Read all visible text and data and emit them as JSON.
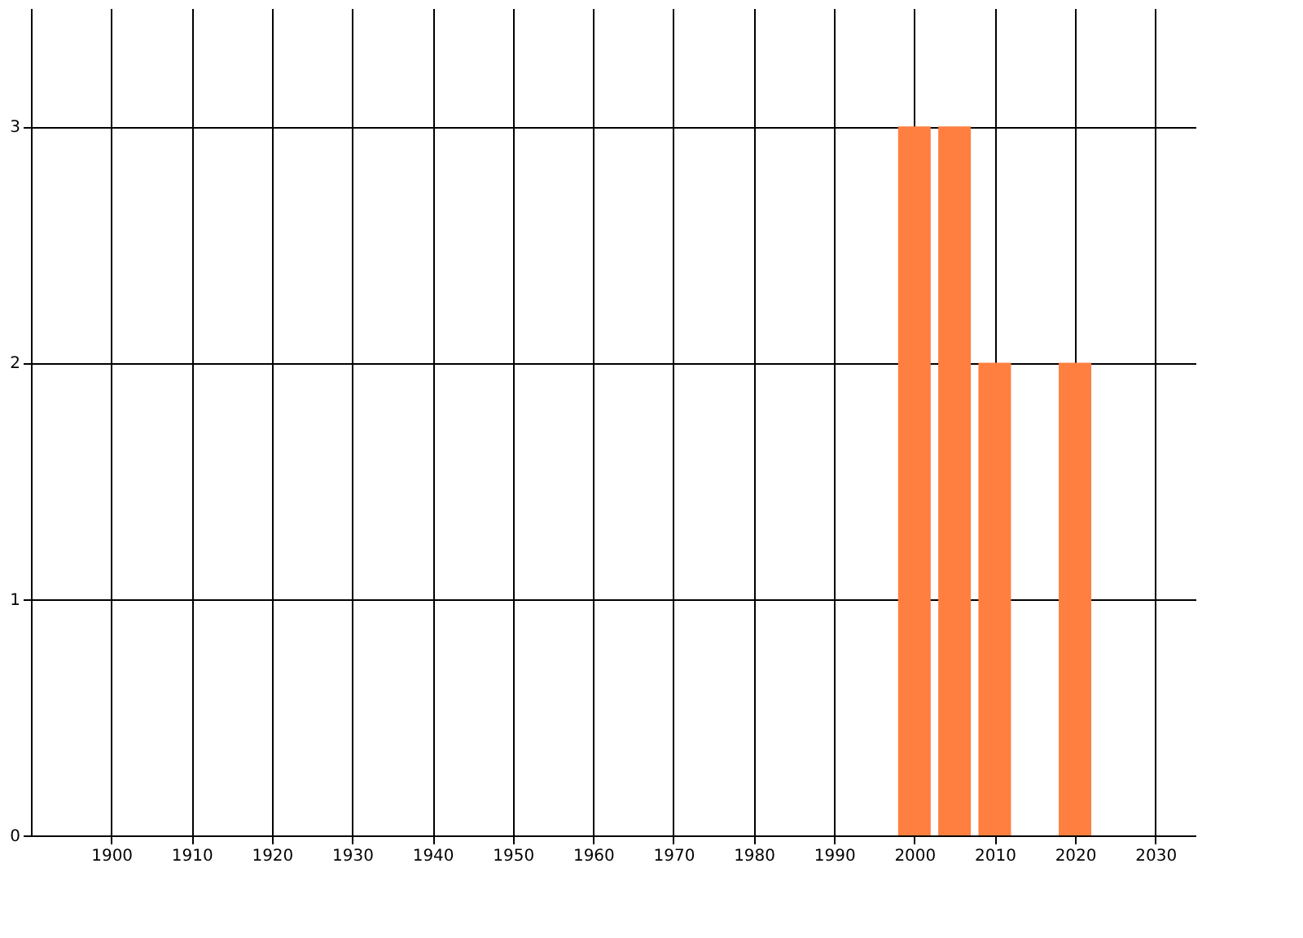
{
  "chart_data": {
    "type": "bar",
    "x": [
      2000,
      2005,
      2010,
      2020
    ],
    "values": [
      3,
      3,
      2,
      2
    ],
    "color": "#ff7f40",
    "xlim": [
      1890,
      2035
    ],
    "xticks": [
      1900,
      1910,
      1920,
      1930,
      1940,
      1950,
      1960,
      1970,
      1980,
      1990,
      2000,
      2010,
      2020,
      2030
    ],
    "ylim": [
      0,
      3.5
    ],
    "yticks": [
      0,
      1,
      2,
      3
    ],
    "grid": true
  }
}
